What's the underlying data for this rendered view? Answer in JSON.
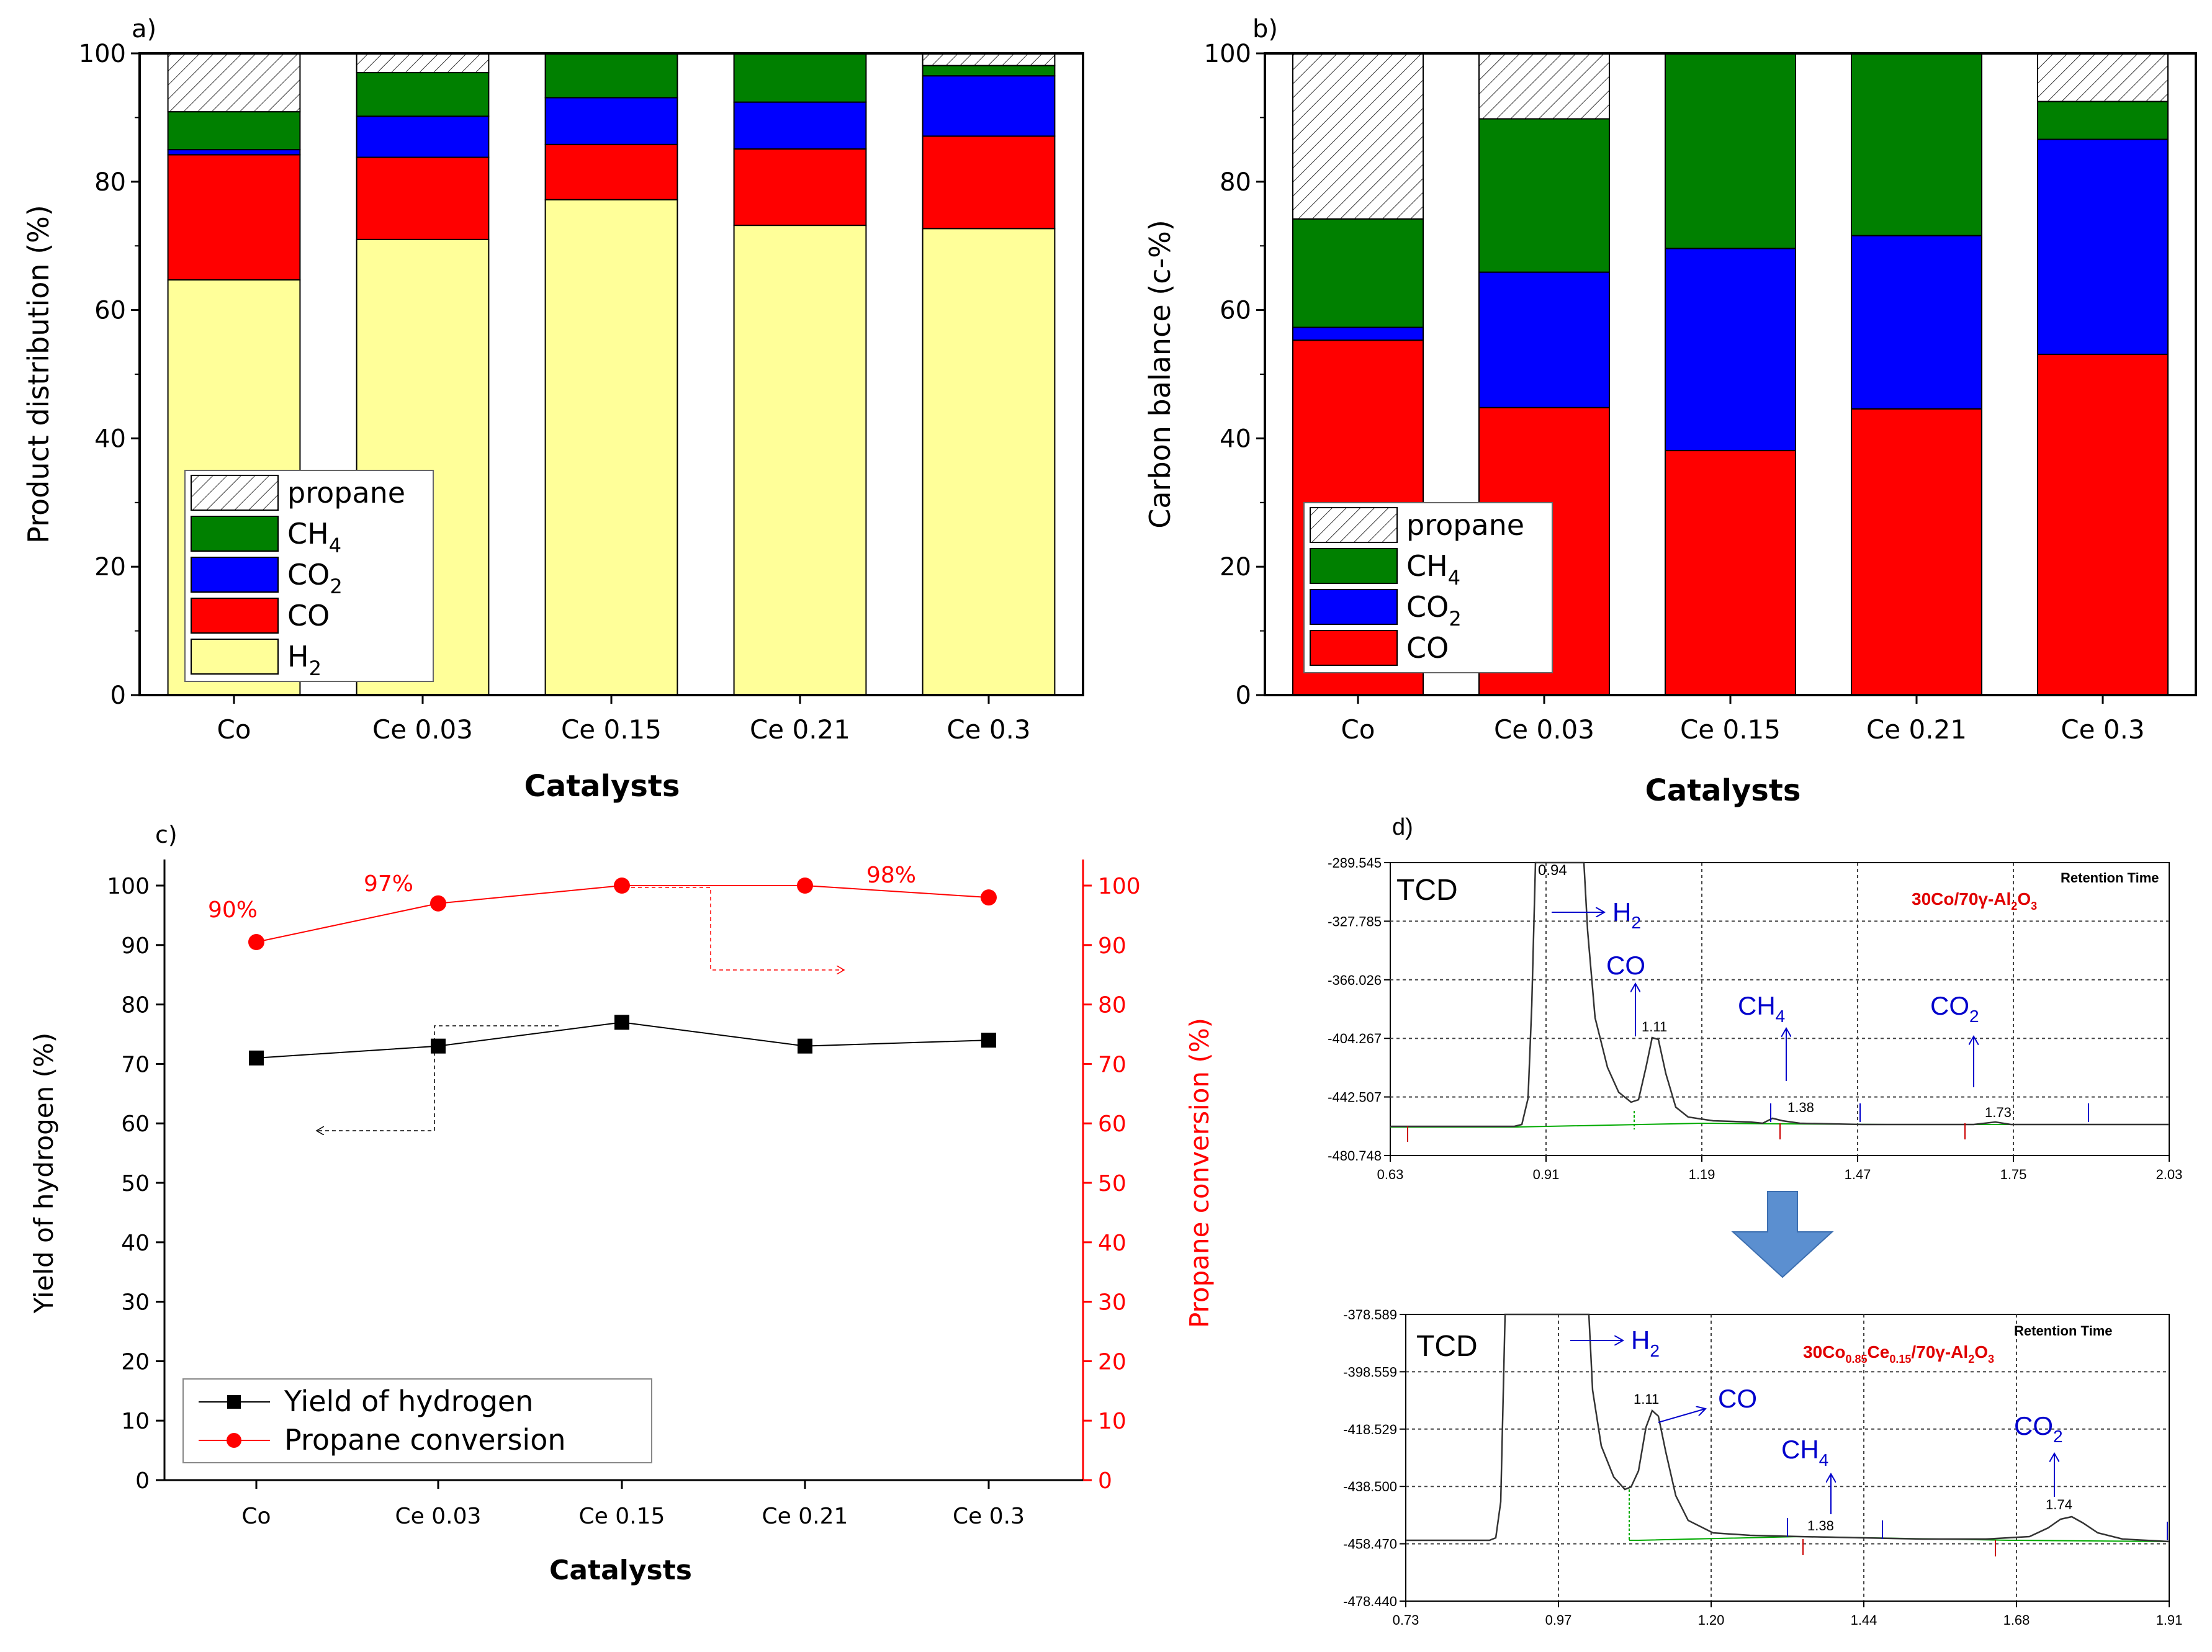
{
  "chart_data": [
    {
      "id": "a",
      "panel_label": "a)",
      "type": "bar",
      "stacked": true,
      "ylabel": "Product distribution (%)",
      "xlabel": "Catalysts",
      "ylim": [
        0,
        100
      ],
      "yticks": [
        "0",
        "20",
        "40",
        "60",
        "80",
        "100"
      ],
      "categories": [
        "Co",
        "Ce 0.03",
        "Ce 0.15",
        "Ce 0.21",
        "Ce 0.3"
      ],
      "series": [
        {
          "key": "H2",
          "name": "H",
          "sub": "2",
          "color": "#ffff99",
          "values": [
            64.7,
            71.0,
            77.2,
            73.2,
            72.7
          ]
        },
        {
          "key": "CO",
          "name": "CO",
          "sub": "",
          "color": "#ff0000",
          "values": [
            19.5,
            12.8,
            8.6,
            11.9,
            14.4
          ]
        },
        {
          "key": "CO2",
          "name": "CO",
          "sub": "2",
          "color": "#0000ff",
          "values": [
            0.8,
            6.4,
            7.3,
            7.3,
            9.4
          ]
        },
        {
          "key": "CH4",
          "name": "CH",
          "sub": "4",
          "color": "#008000",
          "values": [
            5.9,
            6.8,
            6.9,
            7.6,
            1.6
          ]
        },
        {
          "key": "propane",
          "name": "propane",
          "sub": "",
          "color": "hatch",
          "values": [
            9.1,
            3.0,
            0,
            0,
            1.9
          ]
        }
      ],
      "legend_order": [
        "propane",
        "CH4",
        "CO2",
        "CO",
        "H2"
      ],
      "legend_position": "bottom-left"
    },
    {
      "id": "b",
      "panel_label": "b)",
      "type": "bar",
      "stacked": true,
      "ylabel": "Carbon balance (c-%)",
      "xlabel": "Catalysts",
      "ylim": [
        0,
        100
      ],
      "yticks": [
        "0",
        "20",
        "40",
        "60",
        "80",
        "100"
      ],
      "categories": [
        "Co",
        "Ce 0.03",
        "Ce 0.15",
        "Ce 0.21",
        "Ce 0.3"
      ],
      "series": [
        {
          "key": "CO",
          "name": "CO",
          "sub": "",
          "color": "#ff0000",
          "values": [
            55.3,
            44.8,
            38.1,
            44.6,
            53.1
          ]
        },
        {
          "key": "CO2",
          "name": "CO",
          "sub": "2",
          "color": "#0000ff",
          "values": [
            2.0,
            21.1,
            31.5,
            27.0,
            33.5
          ]
        },
        {
          "key": "CH4",
          "name": "CH",
          "sub": "4",
          "color": "#008000",
          "values": [
            16.9,
            23.9,
            30.4,
            28.4,
            5.9
          ]
        },
        {
          "key": "propane",
          "name": "propane",
          "sub": "",
          "color": "hatch",
          "values": [
            25.8,
            10.2,
            0,
            0,
            7.5
          ]
        }
      ],
      "legend_order": [
        "propane",
        "CH4",
        "CO2",
        "CO"
      ],
      "legend_position": "bottom-left"
    },
    {
      "id": "c",
      "panel_label": "c)",
      "type": "line",
      "xlabel": "Catalysts",
      "ylabel_left": "Yield of hydrogen (%)",
      "ylabel_right": "Propane conversion (%)",
      "ylim": [
        0,
        100
      ],
      "yticks": [
        "0",
        "10",
        "20",
        "30",
        "40",
        "50",
        "60",
        "70",
        "80",
        "90",
        "100"
      ],
      "categories": [
        "Co",
        "Ce 0.03",
        "Ce 0.15",
        "Ce 0.21",
        "Ce 0.3"
      ],
      "series": [
        {
          "name": "Yield of hydrogen",
          "axis": "left",
          "color": "#000000",
          "marker": "square",
          "values": [
            71,
            73,
            77,
            73,
            74
          ]
        },
        {
          "name": "Propane conversion",
          "axis": "right",
          "color": "#ff0000",
          "marker": "circle",
          "values": [
            90.5,
            97,
            100,
            100,
            98
          ]
        }
      ],
      "annotations": [
        "90%",
        "97%",
        "98%"
      ],
      "legend_position": "bottom-left"
    },
    {
      "id": "d",
      "panel_label": "d)",
      "type": "line",
      "subtype": "chromatogram",
      "panels": [
        {
          "title": "30Co/70γ-Al2O3",
          "title_main": "30Co/70γ-Al",
          "title_sub1": "2",
          "title_mid": "O",
          "title_sub2": "3",
          "detector": "TCD",
          "retention_label": "Retention Time",
          "xticks": [
            "0.63",
            "0.91",
            "1.19",
            "1.47",
            "1.75",
            "2.03"
          ],
          "yticks": [
            "-289.545",
            "-327.785",
            "-366.026",
            "-404.267",
            "-442.507",
            "-480.748"
          ],
          "xlim": [
            0.63,
            2.03
          ],
          "ylim": [
            -480.748,
            -289.545
          ],
          "peaks": [
            {
              "rt": "0.94",
              "species": "H",
              "sub": "2"
            },
            {
              "rt": "1.11",
              "species": "CO",
              "sub": ""
            },
            {
              "rt": "1.38",
              "species": "CH",
              "sub": "4"
            },
            {
              "rt": "1.73",
              "species": "CO",
              "sub": "2"
            }
          ]
        },
        {
          "title": "30Co0.85Ce0.15/70γ-Al2O3",
          "title_main": "30Co",
          "title_s1": "0.85",
          "title_ce": "Ce",
          "title_s2": "0.15",
          "title_rest": "/70γ-Al",
          "title_s3": "2",
          "title_o": "O",
          "title_s4": "3",
          "detector": "TCD",
          "retention_label": "Retention Time",
          "xticks": [
            "0.73",
            "0.97",
            "1.20",
            "1.44",
            "1.68",
            "1.91"
          ],
          "yticks": [
            "-378.589",
            "-398.559",
            "-418.529",
            "-438.500",
            "-458.470",
            "-478.440"
          ],
          "xlim": [
            0.73,
            1.91
          ],
          "ylim": [
            -478.44,
            -378.589
          ],
          "peaks": [
            {
              "rt": "",
              "species": "H",
              "sub": "2"
            },
            {
              "rt": "1.11",
              "species": "CO",
              "sub": ""
            },
            {
              "rt": "1.38",
              "species": "CH",
              "sub": "4"
            },
            {
              "rt": "1.74",
              "species": "CO",
              "sub": "2"
            }
          ]
        }
      ]
    }
  ]
}
